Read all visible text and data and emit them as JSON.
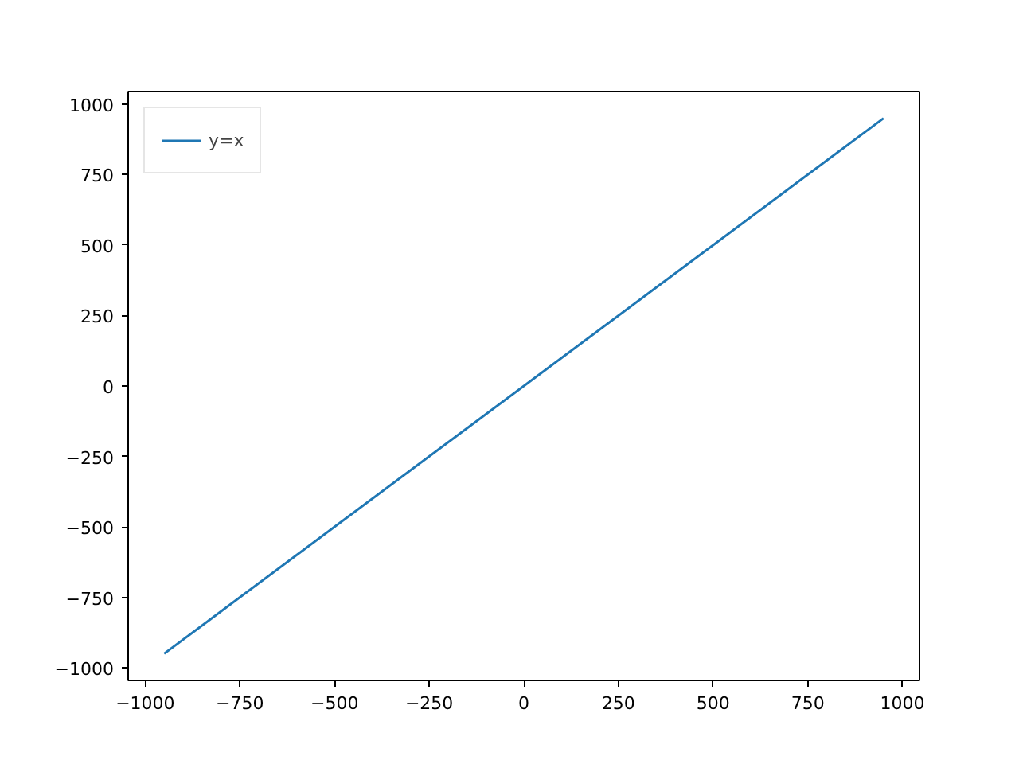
{
  "chart_data": {
    "type": "line",
    "x": [
      -950,
      950
    ],
    "series": [
      {
        "name": "y=x",
        "color": "#1f77b4",
        "values": [
          -950,
          950
        ]
      }
    ],
    "xlim": [
      -1045,
      1045
    ],
    "ylim": [
      -1045,
      1045
    ],
    "xticks": [
      -1000,
      -750,
      -500,
      -250,
      0,
      250,
      500,
      750,
      1000
    ],
    "yticks": [
      -1000,
      -750,
      -500,
      -250,
      0,
      250,
      500,
      750,
      1000
    ],
    "grid": false,
    "legend": "top left",
    "marker": "none",
    "line_style": "solid"
  }
}
